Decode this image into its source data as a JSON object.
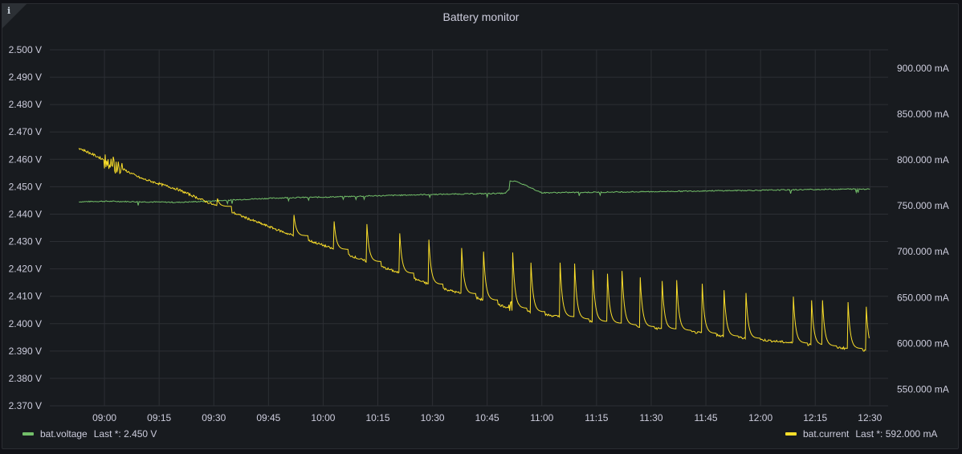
{
  "panel": {
    "title": "Battery monitor",
    "info_icon": "info-icon"
  },
  "legend": {
    "voltage": {
      "name": "bat.voltage",
      "last": "Last *: 2.450 V",
      "color": "#73bf69"
    },
    "current": {
      "name": "bat.current",
      "last": "Last *: 592.000 mA",
      "color": "#fade2a"
    }
  },
  "chart_data": {
    "type": "line",
    "title": "Battery monitor",
    "grid": true,
    "legend_placement": "bottom",
    "x_ticks": [
      "09:00",
      "09:15",
      "09:30",
      "09:45",
      "10:00",
      "10:15",
      "10:30",
      "10:45",
      "11:00",
      "11:15",
      "11:30",
      "11:45",
      "12:00",
      "12:15",
      "12:30"
    ],
    "x_range_minutes": [
      525,
      755
    ],
    "y_left": {
      "unit": "V",
      "range": [
        2.37,
        2.5
      ],
      "ticks": [
        "2.500 V",
        "2.490 V",
        "2.480 V",
        "2.470 V",
        "2.460 V",
        "2.450 V",
        "2.440 V",
        "2.430 V",
        "2.420 V",
        "2.410 V",
        "2.400 V",
        "2.390 V",
        "2.380 V",
        "2.370 V"
      ]
    },
    "y_right": {
      "unit": "mA",
      "range": [
        532,
        920
      ],
      "ticks": [
        "900.000 mA",
        "850.000 mA",
        "800.000 mA",
        "750.000 mA",
        "700.000 mA",
        "650.000 mA",
        "600.000 mA",
        "550.000 mA"
      ]
    },
    "series": [
      {
        "name": "bat.voltage",
        "axis": "left",
        "color": "#73bf69",
        "x": [
          "08:53",
          "09:00",
          "09:10",
          "09:20",
          "09:30",
          "09:40",
          "09:50",
          "10:00",
          "10:15",
          "10:30",
          "10:45",
          "10:50",
          "10:53",
          "11:00",
          "11:15",
          "11:30",
          "11:45",
          "12:00",
          "12:15",
          "12:30"
        ],
        "y": [
          2.4445,
          2.4447,
          2.4445,
          2.4443,
          2.4448,
          2.4455,
          2.446,
          2.4462,
          2.4467,
          2.4472,
          2.4475,
          2.4476,
          2.452,
          2.4478,
          2.448,
          2.4482,
          2.4485,
          2.4487,
          2.449,
          2.4492
        ]
      },
      {
        "name": "bat.current",
        "axis": "right",
        "color": "#fade2a",
        "x": [
          "08:53",
          "09:00",
          "09:10",
          "09:20",
          "09:30",
          "09:40",
          "09:50",
          "10:00",
          "10:10",
          "10:20",
          "10:30",
          "10:40",
          "10:50",
          "11:00",
          "11:10",
          "11:20",
          "11:30",
          "11:40",
          "11:50",
          "12:00",
          "12:10",
          "12:20",
          "12:30"
        ],
        "y": [
          813,
          800,
          780,
          768,
          751,
          735,
          720,
          707,
          692,
          678,
          663,
          652,
          640,
          632,
          626,
          621,
          617,
          613,
          608,
          604,
          600,
          596,
          592
        ]
      }
    ],
    "current_spikes": {
      "x": [
        "09:31",
        "09:52",
        "10:03",
        "10:12",
        "10:21",
        "10:29",
        "10:38",
        "10:44",
        "10:52",
        "10:57",
        "11:05",
        "11:09",
        "11:14",
        "11:18",
        "11:22",
        "11:27",
        "11:33",
        "11:37",
        "11:44",
        "11:50",
        "11:56",
        "12:09",
        "12:14",
        "12:17",
        "12:24",
        "12:29"
      ],
      "peak_mA": [
        758,
        740,
        733,
        730,
        720,
        713,
        704,
        700,
        699,
        688,
        688,
        687,
        680,
        676,
        679,
        672,
        668,
        669,
        665,
        658,
        655,
        651,
        647,
        647,
        645,
        640
      ]
    }
  }
}
